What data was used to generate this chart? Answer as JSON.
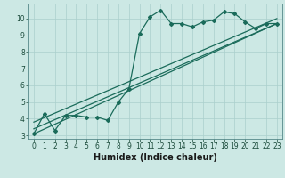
{
  "xlabel": "Humidex (Indice chaleur)",
  "ylabel": "",
  "bg_color": "#cce8e4",
  "line_color": "#1a6b5a",
  "grid_color": "#aacfcc",
  "xlim": [
    -0.5,
    23.5
  ],
  "ylim": [
    2.8,
    10.9
  ],
  "xticks": [
    0,
    1,
    2,
    3,
    4,
    5,
    6,
    7,
    8,
    9,
    10,
    11,
    12,
    13,
    14,
    15,
    16,
    17,
    18,
    19,
    20,
    21,
    22,
    23
  ],
  "yticks": [
    3,
    4,
    5,
    6,
    7,
    8,
    9,
    10
  ],
  "series1_x": [
    0,
    1,
    2,
    3,
    4,
    5,
    6,
    7,
    8,
    9,
    10,
    11,
    12,
    13,
    14,
    15,
    16,
    17,
    18,
    19,
    20,
    21,
    22,
    23
  ],
  "series1_y": [
    3.1,
    4.3,
    3.3,
    4.2,
    4.2,
    4.1,
    4.1,
    3.9,
    5.0,
    5.8,
    9.1,
    10.1,
    10.5,
    9.7,
    9.7,
    9.5,
    9.8,
    9.9,
    10.4,
    10.3,
    9.8,
    9.4,
    9.7,
    9.7
  ],
  "series2_x": [
    0,
    23
  ],
  "series2_y": [
    3.1,
    9.7
  ],
  "series3_x": [
    0,
    23
  ],
  "series3_y": [
    3.4,
    9.7
  ],
  "series4_x": [
    0,
    23
  ],
  "series4_y": [
    3.8,
    10.0
  ],
  "marker": "D",
  "markersize": 2.0,
  "linewidth": 0.9,
  "tick_fontsize": 5.5,
  "label_fontsize": 7
}
